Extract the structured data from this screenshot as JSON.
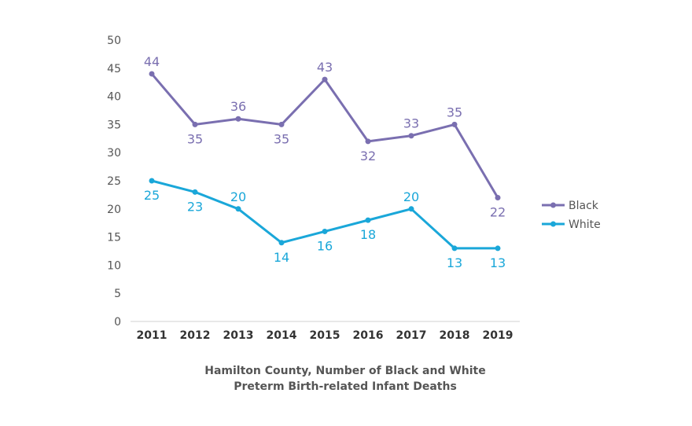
{
  "chart_data": {
    "type": "line",
    "title": "Hamilton County, Number of Black and White Preterm Birth-related Infant Deaths",
    "title_lines": [
      "Hamilton County, Number of Black and White",
      "Preterm Birth-related Infant Deaths"
    ],
    "categories": [
      "2011",
      "2012",
      "2013",
      "2014",
      "2015",
      "2016",
      "2017",
      "2018",
      "2019"
    ],
    "ylim": [
      0,
      50
    ],
    "yticks": [
      0,
      5,
      10,
      15,
      20,
      25,
      30,
      35,
      40,
      45,
      50
    ],
    "grid": false,
    "legend_position": "right",
    "series": [
      {
        "name": "Black",
        "color": "#7a6fb0",
        "values": [
          44,
          35,
          36,
          35,
          43,
          32,
          33,
          35,
          22
        ],
        "label_pos": [
          "above",
          "below",
          "above",
          "below",
          "above",
          "below",
          "above",
          "above",
          "below"
        ]
      },
      {
        "name": "White",
        "color": "#1aa7d9",
        "values": [
          25,
          23,
          20,
          14,
          16,
          18,
          20,
          13,
          13
        ],
        "label_pos": [
          "below",
          "below",
          "above",
          "below",
          "below",
          "below",
          "above",
          "below",
          "below"
        ]
      }
    ]
  }
}
